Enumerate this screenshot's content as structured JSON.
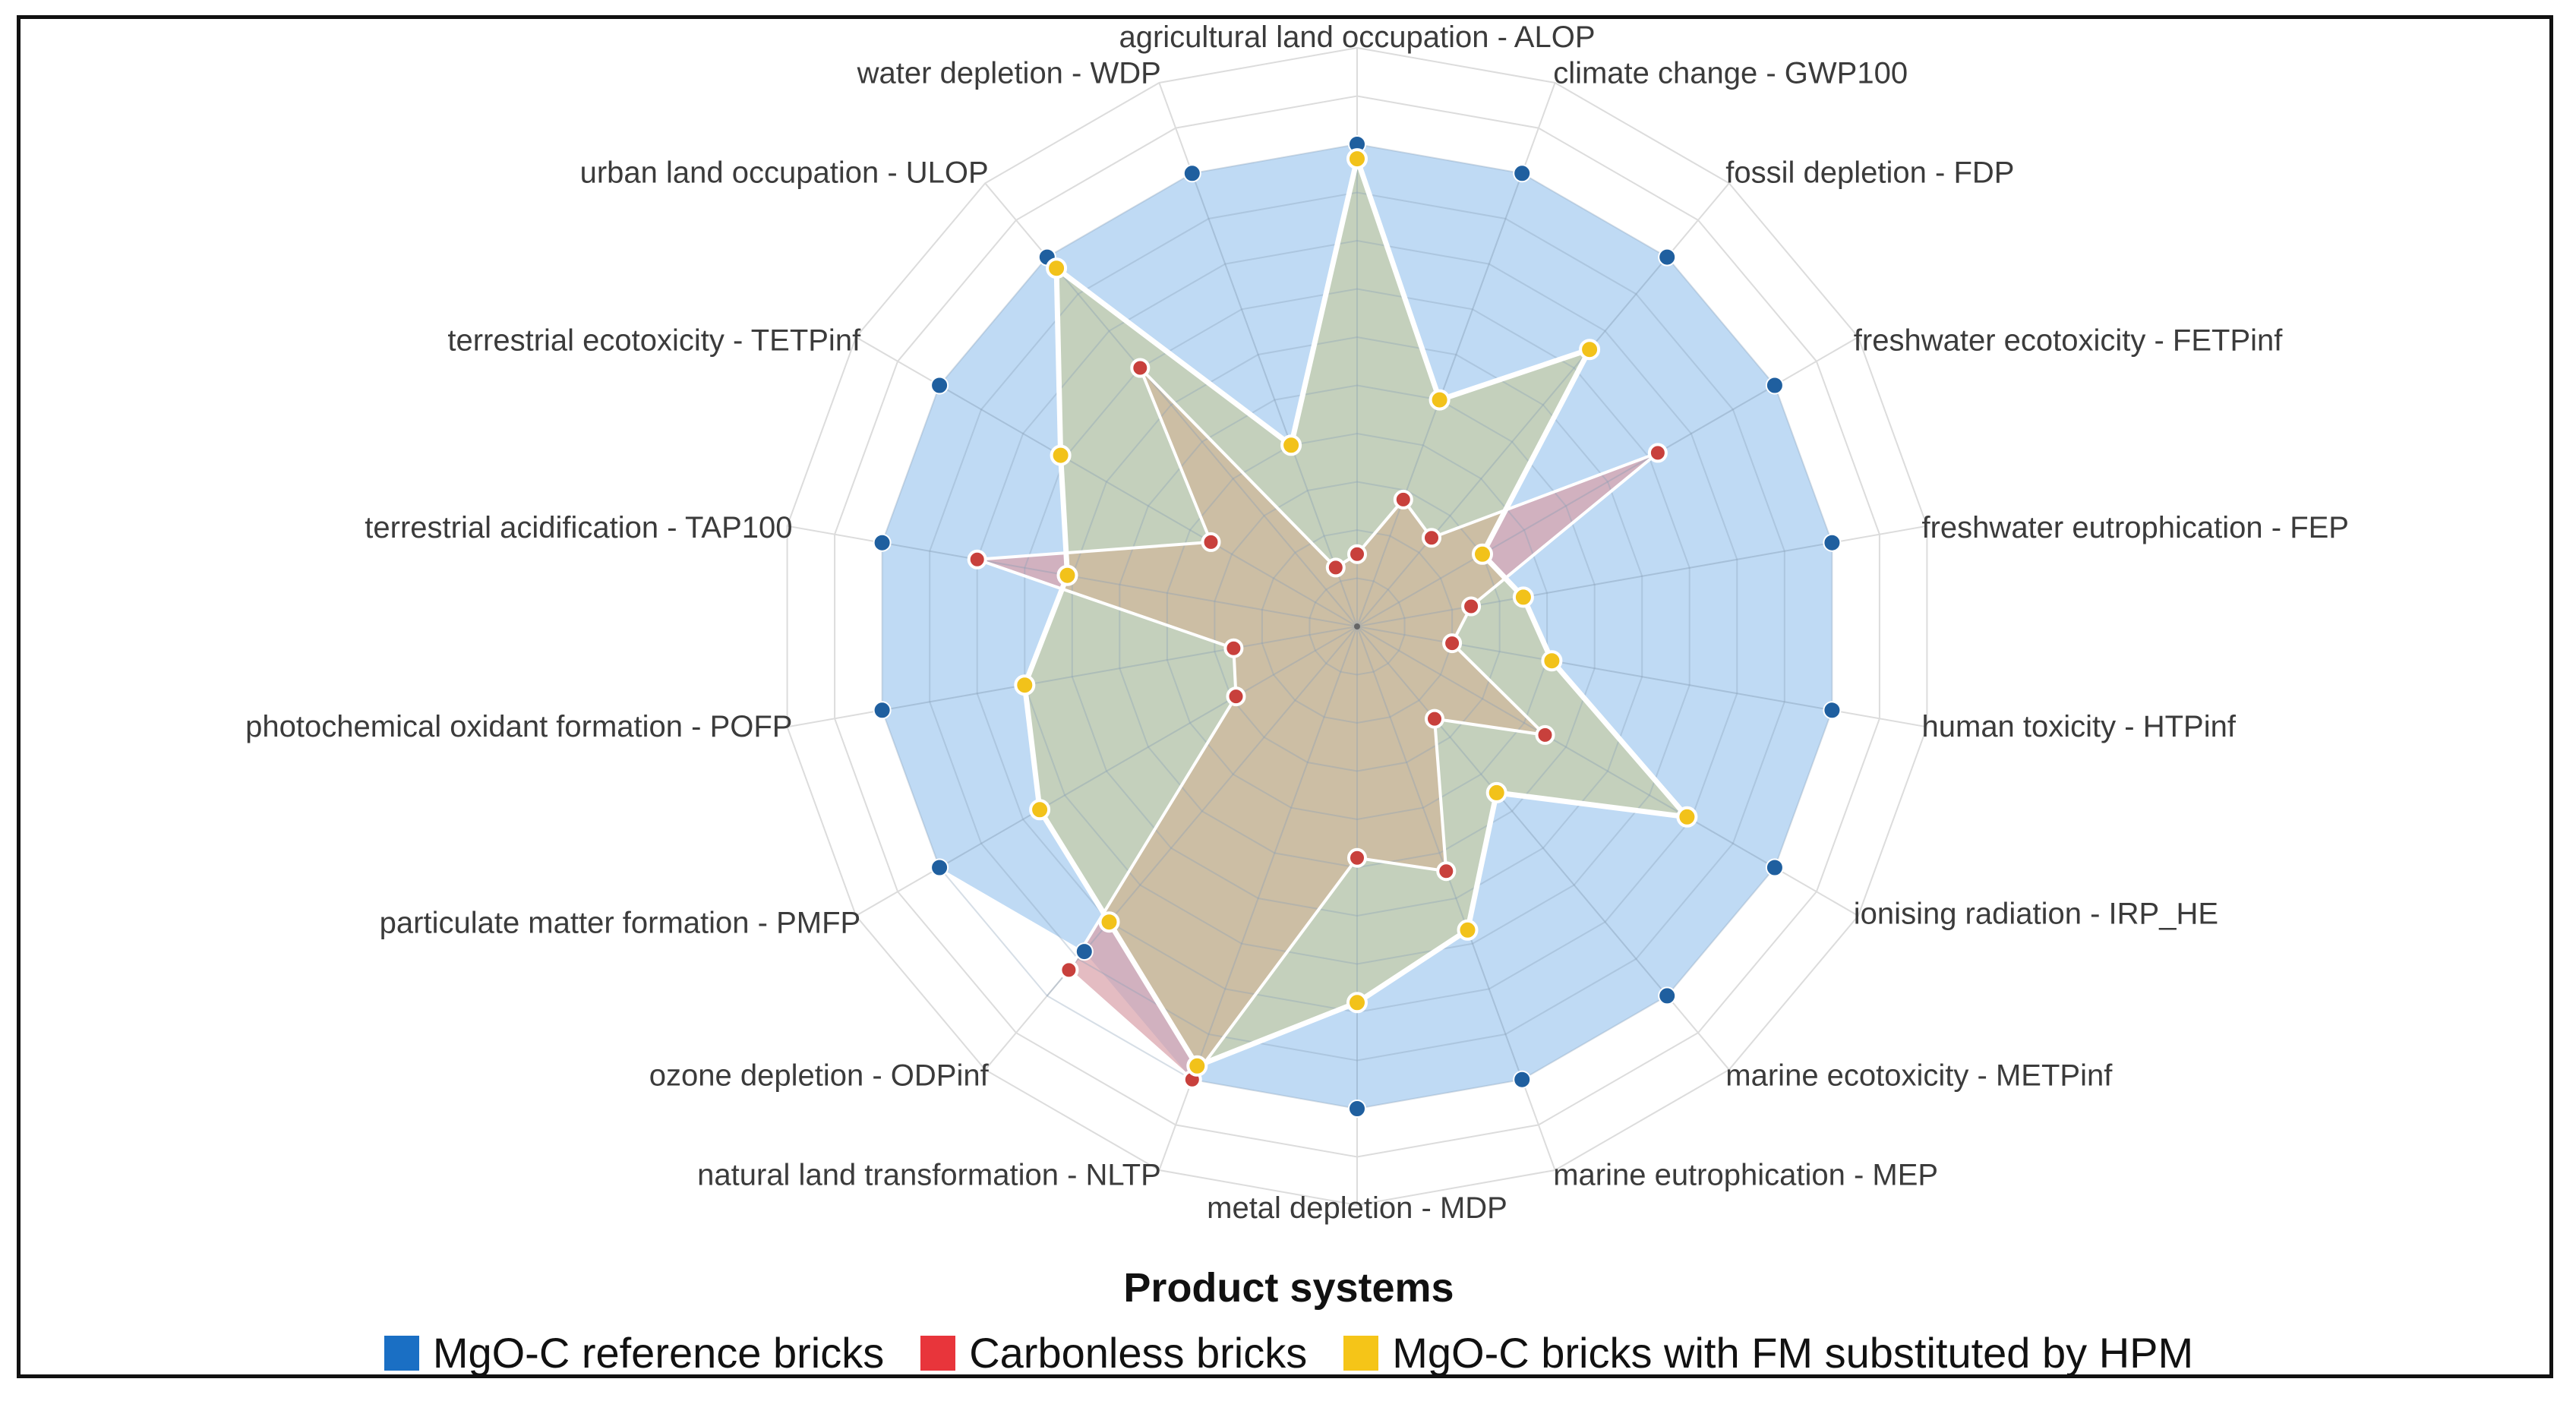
{
  "chart_data": {
    "type": "radar",
    "title": "",
    "legend_title": "Product systems",
    "axes": [
      "agricultural land occupation - ALOP",
      "climate change - GWP100",
      "fossil depletion - FDP",
      "freshwater ecotoxicity - FETPinf",
      "freshwater eutrophication - FEP",
      "human toxicity - HTPinf",
      "ionising radiation - IRP_HE",
      "marine ecotoxicity - METPinf",
      "marine eutrophication - MEP",
      "metal depletion - MDP",
      "natural land transformation - NLTP",
      "ozone depletion - ODPinf",
      "particulate matter formation - PMFP",
      "photochemical oxidant formation - POFP",
      "terrestrial acidification - TAP100",
      "terrestrial ecotoxicity - TETPinf",
      "urban land occupation - ULOP",
      "water depletion - WDP"
    ],
    "rlim": [
      0,
      100
    ],
    "grid_levels": 10,
    "series": [
      {
        "name": "MgO-C reference bricks",
        "color": "#1f5f9f",
        "legend_color": "#1a6fc4",
        "fill": "#aacdf0",
        "values": [
          100,
          100,
          100,
          100,
          100,
          100,
          100,
          100,
          100,
          100,
          100,
          88,
          100,
          100,
          100,
          100,
          100,
          100
        ]
      },
      {
        "name": "Carbonless bricks",
        "color": "#c8403c",
        "legend_color": "#e8353b",
        "fill": "#d9a0a8",
        "values": [
          15,
          28,
          24,
          72,
          24,
          20,
          45,
          25,
          54,
          48,
          100,
          93,
          29,
          26,
          80,
          35,
          70,
          13
        ]
      },
      {
        "name": "MgO-C bricks with FM substituted by HPM",
        "color": "#f2c21a",
        "legend_color": "#f5c518",
        "fill": "#c9c98e",
        "values": [
          97,
          50,
          75,
          30,
          35,
          41,
          79,
          45,
          67,
          78,
          97,
          80,
          76,
          70,
          61,
          71,
          97,
          40
        ]
      }
    ]
  }
}
